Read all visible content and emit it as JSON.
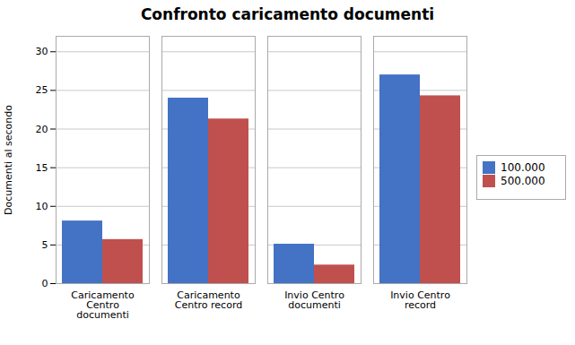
{
  "chart_data": {
    "type": "bar",
    "title": "Confronto caricamento documenti",
    "ylabel": "Documenti al secondo",
    "categories": [
      "Caricamento\nCentro\ndocumenti",
      "Caricamento\nCentro record",
      "Invio Centro\ndocumenti",
      "Invio Centro\nrecord"
    ],
    "series": [
      {
        "name": "100.000",
        "color": "#4472C4",
        "values": [
          8.1,
          24.0,
          5.1,
          27.0
        ]
      },
      {
        "name": "500.000",
        "color": "#C0504D",
        "values": [
          5.7,
          21.3,
          2.4,
          24.3
        ]
      }
    ],
    "ylim": [
      0,
      32
    ],
    "yticks": [
      0,
      5,
      10,
      15,
      20,
      25,
      30
    ],
    "grid": true,
    "legend": "right"
  }
}
